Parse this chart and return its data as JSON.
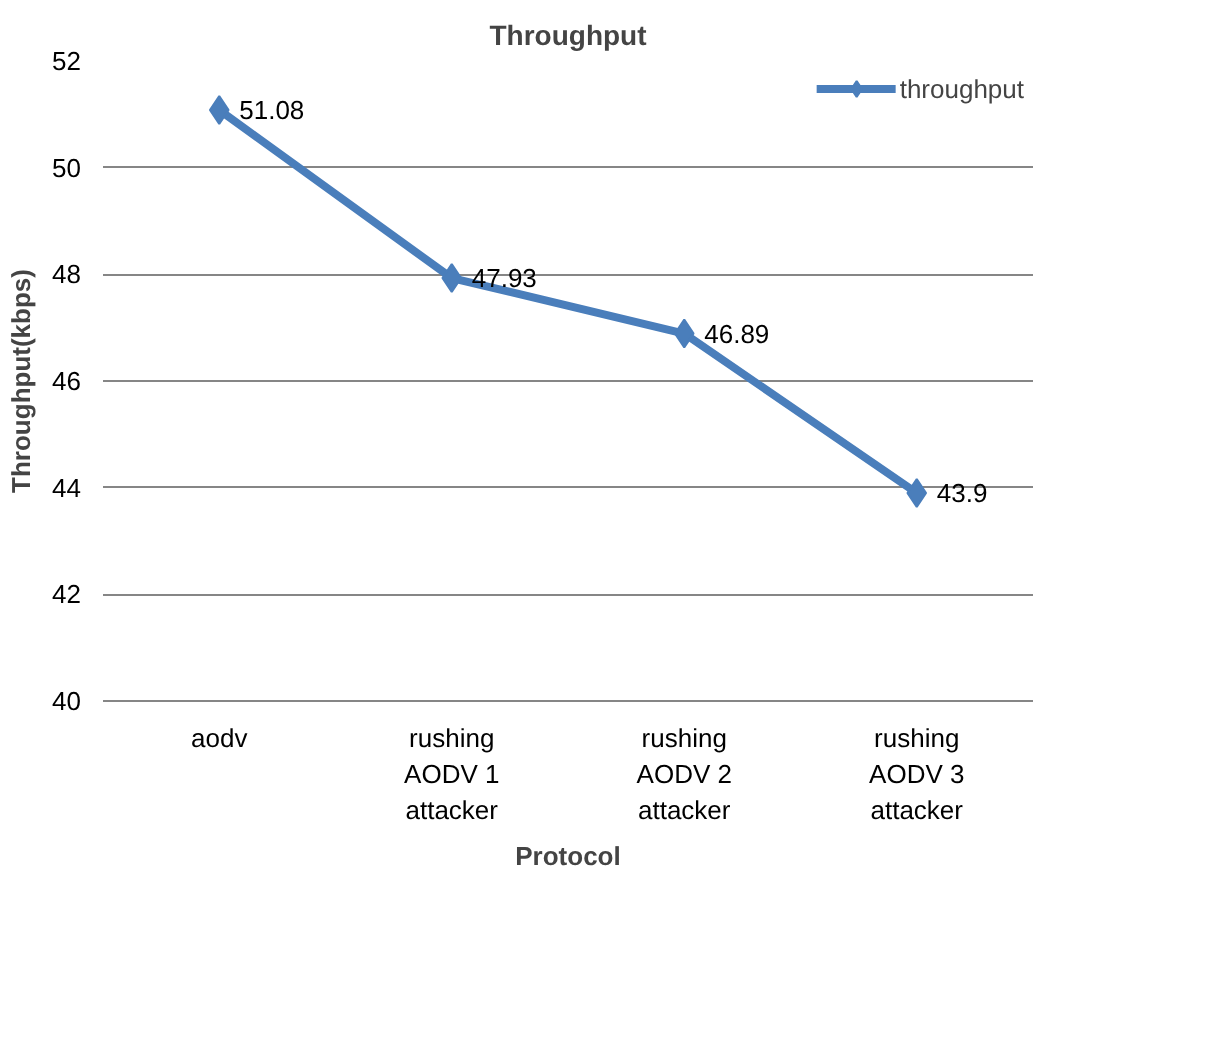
{
  "chart_data": {
    "type": "line",
    "title": "Throughput",
    "xlabel": "Protocol",
    "ylabel": "Throughput(kbps)",
    "categories": [
      "aodv",
      "rushing AODV 1 attacker",
      "rushing AODV 2 attacker",
      "rushing AODV 3 attacker"
    ],
    "series": [
      {
        "name": "throughput",
        "color": "#4a7ebb",
        "values": [
          51.08,
          47.93,
          46.89,
          43.9
        ]
      }
    ],
    "ylim": [
      40,
      52
    ],
    "yticks": [
      40,
      42,
      44,
      46,
      48,
      50,
      52
    ],
    "grid": "y",
    "legend": "top right",
    "marker": "diamond",
    "line_style": "solid",
    "data_labels": true
  }
}
